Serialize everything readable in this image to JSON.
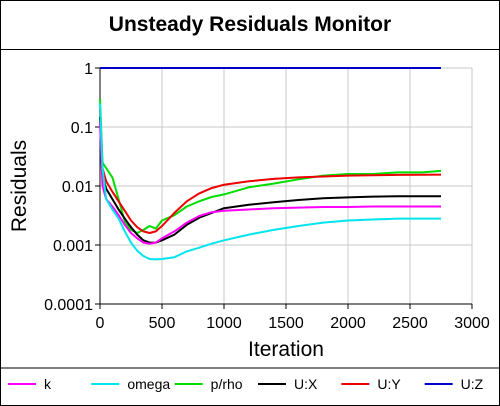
{
  "chart_data": {
    "type": "line",
    "title": "Unsteady Residuals Monitor",
    "xlabel": "Iteration",
    "ylabel": "Residuals",
    "xlim": [
      0,
      3000
    ],
    "ylim": [
      0.0001,
      1
    ],
    "yscale": "log",
    "x_ticks": [
      "0",
      "500",
      "1000",
      "1500",
      "2000",
      "2500",
      "3000"
    ],
    "y_ticks": [
      "1",
      "0.1",
      "0.01",
      "0.001",
      "0.0001"
    ],
    "grid": true,
    "legend_position": "bottom",
    "series": [
      {
        "name": "k",
        "color": "#ff00ff",
        "x": [
          0,
          20,
          50,
          100,
          150,
          200,
          250,
          300,
          350,
          400,
          450,
          500,
          600,
          700,
          800,
          900,
          1000,
          1200,
          1400,
          1600,
          1800,
          2000,
          2200,
          2400,
          2600,
          2750
        ],
        "y": [
          0.12,
          0.01,
          0.006,
          0.0045,
          0.0032,
          0.0022,
          0.0016,
          0.0013,
          0.0011,
          0.00105,
          0.0011,
          0.0013,
          0.0017,
          0.0024,
          0.0031,
          0.0036,
          0.0038,
          0.004,
          0.0042,
          0.0043,
          0.0044,
          0.0044,
          0.0045,
          0.0045,
          0.0045,
          0.0045
        ]
      },
      {
        "name": "omega",
        "color": "#00e5ee",
        "x": [
          0,
          20,
          50,
          100,
          150,
          200,
          250,
          300,
          350,
          400,
          450,
          500,
          600,
          700,
          800,
          900,
          1000,
          1200,
          1400,
          1600,
          1800,
          2000,
          2200,
          2400,
          2600,
          2750
        ],
        "y": [
          0.25,
          0.02,
          0.006,
          0.004,
          0.0028,
          0.0017,
          0.0011,
          0.0008,
          0.00065,
          0.00058,
          0.00057,
          0.00058,
          0.00062,
          0.00078,
          0.0009,
          0.00105,
          0.0012,
          0.0015,
          0.0018,
          0.0021,
          0.0024,
          0.0026,
          0.0027,
          0.0028,
          0.0028,
          0.0028
        ]
      },
      {
        "name": "p/rho",
        "color": "#00dd00",
        "x": [
          0,
          20,
          50,
          100,
          150,
          200,
          250,
          300,
          350,
          400,
          450,
          500,
          600,
          700,
          800,
          900,
          1000,
          1200,
          1400,
          1600,
          1800,
          2000,
          2200,
          2400,
          2600,
          2750
        ],
        "y": [
          0.3,
          0.025,
          0.02,
          0.014,
          0.006,
          0.0025,
          0.0018,
          0.0016,
          0.0018,
          0.0021,
          0.0019,
          0.0026,
          0.0032,
          0.0045,
          0.0055,
          0.0065,
          0.0072,
          0.0095,
          0.011,
          0.013,
          0.015,
          0.016,
          0.016,
          0.017,
          0.017,
          0.018
        ]
      },
      {
        "name": "U:X",
        "color": "#000000",
        "x": [
          0,
          20,
          50,
          100,
          150,
          200,
          250,
          300,
          350,
          400,
          450,
          500,
          600,
          700,
          800,
          900,
          1000,
          1200,
          1400,
          1600,
          1800,
          2000,
          2200,
          2400,
          2600,
          2750
        ],
        "y": [
          0.15,
          0.015,
          0.009,
          0.006,
          0.004,
          0.0028,
          0.002,
          0.0015,
          0.0012,
          0.0011,
          0.0011,
          0.0012,
          0.0015,
          0.0022,
          0.0029,
          0.0035,
          0.0042,
          0.0048,
          0.0053,
          0.0058,
          0.0062,
          0.0064,
          0.0066,
          0.0067,
          0.0067,
          0.0067
        ]
      },
      {
        "name": "U:Y",
        "color": "#ee0000",
        "x": [
          0,
          20,
          50,
          100,
          150,
          200,
          250,
          300,
          350,
          400,
          450,
          500,
          600,
          700,
          800,
          900,
          1000,
          1200,
          1400,
          1600,
          1800,
          2000,
          2200,
          2400,
          2600,
          2750
        ],
        "y": [
          0.2,
          0.02,
          0.012,
          0.008,
          0.0055,
          0.0038,
          0.0026,
          0.002,
          0.0017,
          0.0016,
          0.0017,
          0.0021,
          0.0035,
          0.0055,
          0.0075,
          0.0092,
          0.0105,
          0.012,
          0.0132,
          0.014,
          0.0145,
          0.015,
          0.0152,
          0.0154,
          0.0155,
          0.0156
        ]
      },
      {
        "name": "U:Z",
        "color": "#0000cc",
        "x": [
          0,
          2750
        ],
        "y": [
          1,
          1
        ]
      }
    ]
  }
}
